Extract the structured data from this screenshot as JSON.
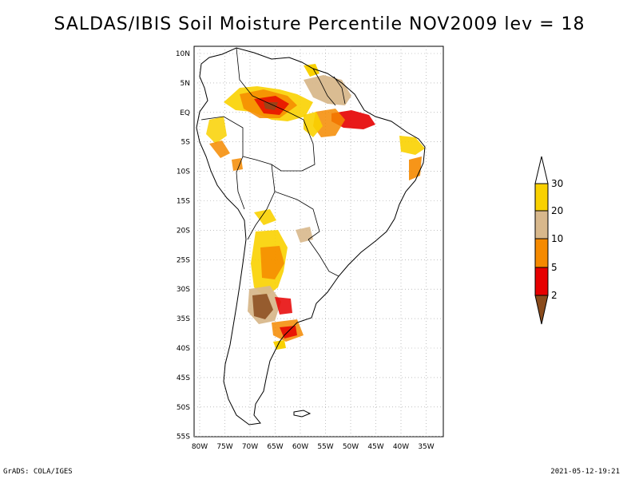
{
  "title": "SALDAS/IBIS Soil Moisture Percentile NOV2009 lev = 18",
  "footer": {
    "left": "GrADS: COLA/IGES",
    "right": "2021-05-12-19:21"
  },
  "map": {
    "lat_labels": [
      "10N",
      "5N",
      "EQ",
      "5S",
      "10S",
      "15S",
      "20S",
      "25S",
      "30S",
      "35S",
      "40S",
      "45S",
      "50S",
      "55S"
    ],
    "lon_labels": [
      "80W",
      "75W",
      "70W",
      "65W",
      "60W",
      "55W",
      "50W",
      "45W",
      "40W",
      "35W"
    ]
  },
  "legend": {
    "labels": [
      "30",
      "20",
      "10",
      "5",
      "2"
    ],
    "colors": {
      "above_30": "#ffffff",
      "20_30": "#f9d100",
      "10_20": "#d8b88c",
      "5_10": "#f58a00",
      "2_5": "#e60000",
      "below_2": "#8a4b1c"
    }
  }
}
